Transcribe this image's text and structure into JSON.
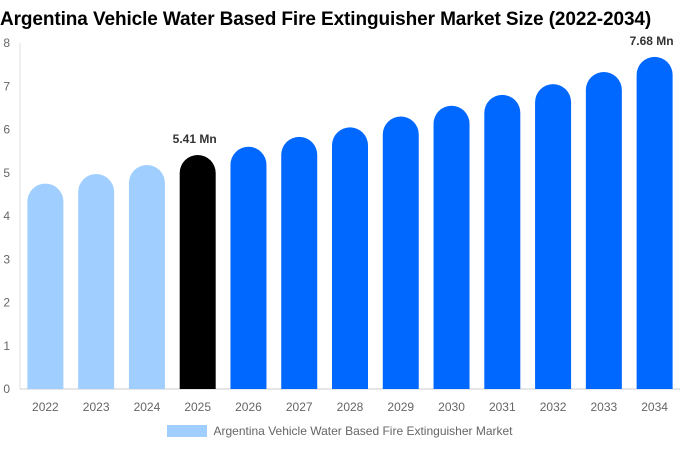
{
  "chart_data": {
    "type": "bar",
    "title": "Argentina Vehicle Water Based Fire Extinguisher Market Size (2022-2034)",
    "categories": [
      "2022",
      "2023",
      "2024",
      "2025",
      "2026",
      "2027",
      "2028",
      "2029",
      "2030",
      "2031",
      "2032",
      "2033",
      "2034"
    ],
    "series": [
      {
        "name": "Argentina Vehicle Water Based Fire Extinguisher Market",
        "values": [
          4.75,
          4.97,
          5.18,
          5.41,
          5.6,
          5.83,
          6.05,
          6.3,
          6.55,
          6.8,
          7.05,
          7.33,
          7.68
        ]
      }
    ],
    "bar_colors": [
      "#a0cfff",
      "#a0cfff",
      "#a0cfff",
      "#000000",
      "#0068ff",
      "#0068ff",
      "#0068ff",
      "#0068ff",
      "#0068ff",
      "#0068ff",
      "#0068ff",
      "#0068ff",
      "#0068ff"
    ],
    "data_labels": [
      {
        "index": 3,
        "text": "5.41 Mn"
      },
      {
        "index": 12,
        "text": "7.68 Mn"
      }
    ],
    "ylim": [
      0,
      8
    ],
    "yticks": [
      0,
      1,
      2,
      3,
      4,
      5,
      6,
      7,
      8
    ],
    "xlabel": "",
    "ylabel": "",
    "grid": false,
    "legend_position": "bottom"
  }
}
